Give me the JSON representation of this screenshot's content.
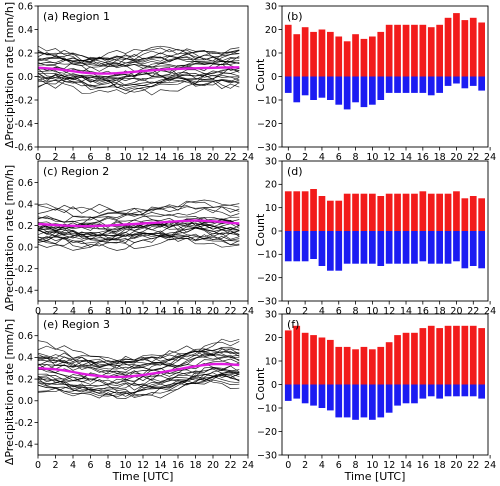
{
  "colors": {
    "mean_line": "#e01be0",
    "member_line": "#000000",
    "positive_bar": "#f21b1b",
    "negative_bar": "#1b1bf2"
  },
  "axis_labels": {
    "left_ylabel": "ΔPrecipitation rate [mm/h]",
    "right_ylabel": "Count",
    "xlabel": "Time [UTC]"
  },
  "chart_data": [
    {
      "type": "line",
      "panel_label": "(a) Region 1",
      "x": [
        0,
        1,
        2,
        3,
        4,
        5,
        6,
        7,
        8,
        9,
        10,
        11,
        12,
        13,
        14,
        15,
        16,
        17,
        18,
        19,
        20,
        21,
        22,
        23
      ],
      "series": [
        {
          "role": "mean",
          "values": [
            0.075,
            0.07,
            0.064,
            0.055,
            0.045,
            0.035,
            0.028,
            0.025,
            0.025,
            0.028,
            0.033,
            0.04,
            0.047,
            0.053,
            0.058,
            0.062,
            0.065,
            0.068,
            0.07,
            0.072,
            0.074,
            0.076,
            0.077,
            0.078
          ]
        }
      ],
      "ensemble": {
        "members": 28,
        "amplitude": 0.13,
        "seed": 11
      },
      "xlim": [
        0,
        24
      ],
      "ylim": [
        -0.6,
        0.6
      ],
      "xticks": [
        0,
        2,
        4,
        6,
        8,
        10,
        12,
        14,
        16,
        18,
        20,
        22,
        24
      ],
      "yticks": [
        -0.6,
        -0.4,
        -0.2,
        0.0,
        0.2,
        0.4,
        0.6
      ],
      "yticklabels": [
        "-0.6",
        "-0.4",
        "-0.2",
        "0.0",
        "0.2",
        "0.4",
        "0.6"
      ],
      "grid": false
    },
    {
      "type": "bar",
      "panel_label": "(b)",
      "x": [
        0,
        1,
        2,
        3,
        4,
        5,
        6,
        7,
        8,
        9,
        10,
        11,
        12,
        13,
        14,
        15,
        16,
        17,
        18,
        19,
        20,
        21,
        22,
        23
      ],
      "series": [
        {
          "role": "positive",
          "values": [
            22,
            18,
            21,
            19,
            20,
            19,
            17,
            15,
            18,
            16,
            17,
            19,
            22,
            22,
            22,
            22,
            22,
            21,
            22,
            25,
            27,
            24,
            25,
            23
          ]
        },
        {
          "role": "negative",
          "values": [
            -7,
            -11,
            -8,
            -10,
            -9,
            -10,
            -12,
            -14,
            -11,
            -13,
            -12,
            -10,
            -7,
            -7,
            -7,
            -7,
            -7,
            -8,
            -7,
            -4,
            -3,
            -5,
            -4,
            -6
          ]
        }
      ],
      "xlim": [
        -0.75,
        23.75
      ],
      "ylim": [
        -30,
        30
      ],
      "xticks": [
        0,
        2,
        4,
        6,
        8,
        10,
        12,
        14,
        16,
        18,
        20,
        22,
        24
      ],
      "yticks": [
        -30,
        -20,
        -10,
        0,
        10,
        20,
        30
      ],
      "yticklabels": [
        "−30",
        "−20",
        "−10",
        "0",
        "10",
        "20",
        "30"
      ],
      "grid": false
    },
    {
      "type": "line",
      "panel_label": "(c) Region 2",
      "x": [
        0,
        1,
        2,
        3,
        4,
        5,
        6,
        7,
        8,
        9,
        10,
        11,
        12,
        13,
        14,
        15,
        16,
        17,
        18,
        19,
        20,
        21,
        22,
        23
      ],
      "series": [
        {
          "role": "mean",
          "values": [
            0.215,
            0.21,
            0.205,
            0.2,
            0.198,
            0.195,
            0.195,
            0.198,
            0.2,
            0.205,
            0.21,
            0.215,
            0.22,
            0.225,
            0.23,
            0.235,
            0.24,
            0.245,
            0.248,
            0.245,
            0.24,
            0.235,
            0.225,
            0.22
          ]
        }
      ],
      "ensemble": {
        "members": 28,
        "amplitude": 0.14,
        "seed": 23
      },
      "xlim": [
        0,
        24
      ],
      "ylim": [
        -0.5,
        0.8
      ],
      "xticks": [
        0,
        2,
        4,
        6,
        8,
        10,
        12,
        14,
        16,
        18,
        20,
        22,
        24
      ],
      "yticks": [
        -0.4,
        -0.2,
        0.0,
        0.2,
        0.4,
        0.6
      ],
      "yticklabels": [
        "-0.4",
        "-0.2",
        "0.0",
        "0.2",
        "0.4",
        "0.6"
      ],
      "grid": false
    },
    {
      "type": "bar",
      "panel_label": "(d)",
      "x": [
        0,
        1,
        2,
        3,
        4,
        5,
        6,
        7,
        8,
        9,
        10,
        11,
        12,
        13,
        14,
        15,
        16,
        17,
        18,
        19,
        20,
        21,
        22,
        23
      ],
      "series": [
        {
          "role": "positive",
          "values": [
            17,
            17,
            17,
            18,
            15,
            13,
            13,
            16,
            16,
            16,
            16,
            15,
            16,
            16,
            16,
            16,
            17,
            16,
            16,
            16,
            17,
            14,
            15,
            14
          ]
        },
        {
          "role": "negative",
          "values": [
            -13,
            -13,
            -13,
            -12,
            -15,
            -17,
            -17,
            -14,
            -14,
            -14,
            -14,
            -15,
            -14,
            -14,
            -14,
            -14,
            -13,
            -14,
            -14,
            -14,
            -13,
            -16,
            -15,
            -16
          ]
        }
      ],
      "xlim": [
        -0.75,
        23.75
      ],
      "ylim": [
        -30,
        30
      ],
      "xticks": [
        0,
        2,
        4,
        6,
        8,
        10,
        12,
        14,
        16,
        18,
        20,
        22,
        24
      ],
      "yticks": [
        -30,
        -20,
        -10,
        0,
        10,
        20,
        30
      ],
      "yticklabels": [
        "−30",
        "−20",
        "−10",
        "0",
        "10",
        "20",
        "30"
      ],
      "grid": false
    },
    {
      "type": "line",
      "panel_label": "(e) Region 3",
      "x": [
        0,
        1,
        2,
        3,
        4,
        5,
        6,
        7,
        8,
        9,
        10,
        11,
        12,
        13,
        14,
        15,
        16,
        17,
        18,
        19,
        20,
        21,
        22,
        23
      ],
      "series": [
        {
          "role": "mean",
          "values": [
            0.3,
            0.295,
            0.29,
            0.28,
            0.265,
            0.25,
            0.238,
            0.228,
            0.222,
            0.22,
            0.222,
            0.228,
            0.238,
            0.25,
            0.262,
            0.275,
            0.29,
            0.305,
            0.318,
            0.33,
            0.338,
            0.34,
            0.335,
            0.33
          ]
        }
      ],
      "ensemble": {
        "members": 30,
        "amplitude": 0.14,
        "seed": 37
      },
      "xlim": [
        0,
        24
      ],
      "ylim": [
        -0.5,
        0.8
      ],
      "xticks": [
        0,
        2,
        4,
        6,
        8,
        10,
        12,
        14,
        16,
        18,
        20,
        22,
        24
      ],
      "yticks": [
        -0.4,
        -0.2,
        0.0,
        0.2,
        0.4,
        0.6
      ],
      "yticklabels": [
        "-0.4",
        "-0.2",
        "0.0",
        "0.2",
        "0.4",
        "0.6"
      ],
      "grid": false
    },
    {
      "type": "bar",
      "panel_label": "(f)",
      "x": [
        0,
        1,
        2,
        3,
        4,
        5,
        6,
        7,
        8,
        9,
        10,
        11,
        12,
        13,
        14,
        15,
        16,
        17,
        18,
        19,
        20,
        21,
        22,
        23
      ],
      "series": [
        {
          "role": "positive",
          "values": [
            23,
            25,
            22,
            21,
            20,
            19,
            16,
            16,
            15,
            16,
            15,
            16,
            18,
            21,
            22,
            22,
            24,
            25,
            24,
            25,
            25,
            25,
            25,
            24
          ]
        },
        {
          "role": "negative",
          "values": [
            -7,
            -6,
            -8,
            -9,
            -10,
            -11,
            -14,
            -14,
            -15,
            -14,
            -15,
            -14,
            -12,
            -9,
            -8,
            -8,
            -6,
            -5,
            -6,
            -5,
            -5,
            -5,
            -5,
            -6
          ]
        }
      ],
      "xlim": [
        -0.75,
        23.75
      ],
      "ylim": [
        -30,
        30
      ],
      "xticks": [
        0,
        2,
        4,
        6,
        8,
        10,
        12,
        14,
        16,
        18,
        20,
        22,
        24
      ],
      "yticks": [
        -30,
        -20,
        -10,
        0,
        10,
        20,
        30
      ],
      "yticklabels": [
        "−30",
        "−20",
        "−10",
        "0",
        "10",
        "20",
        "30"
      ],
      "grid": false
    }
  ]
}
